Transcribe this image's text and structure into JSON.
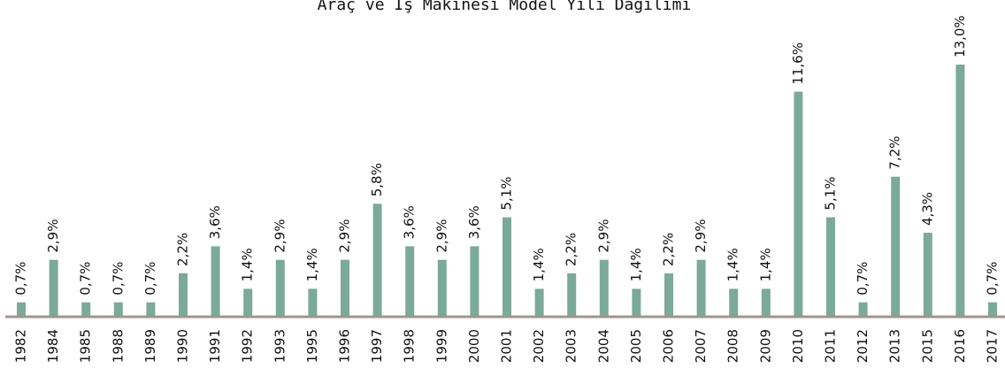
{
  "chart_data": {
    "type": "bar",
    "title": "Araç ve İş Makinesi Model Yılı Dağılımı",
    "categories": [
      "1982",
      "1984",
      "1985",
      "1988",
      "1989",
      "1990",
      "1991",
      "1992",
      "1993",
      "1995",
      "1996",
      "1997",
      "1998",
      "1999",
      "2000",
      "2001",
      "2002",
      "2003",
      "2004",
      "2005",
      "2006",
      "2007",
      "2008",
      "2009",
      "2010",
      "2011",
      "2012",
      "2013",
      "2015",
      "2016",
      "2017"
    ],
    "values": [
      0.7,
      2.9,
      0.7,
      0.7,
      0.7,
      2.2,
      3.6,
      1.4,
      2.9,
      1.4,
      2.9,
      5.8,
      3.6,
      2.9,
      3.6,
      5.1,
      1.4,
      2.2,
      2.9,
      1.4,
      2.2,
      2.9,
      1.4,
      1.4,
      11.6,
      5.1,
      0.7,
      7.2,
      4.3,
      13.0,
      0.7
    ],
    "value_labels": [
      "0,7%",
      "2,9%",
      "0,7%",
      "0,7%",
      "0,7%",
      "2,2%",
      "3,6%",
      "1,4%",
      "2,9%",
      "1,4%",
      "2,9%",
      "5,8%",
      "3,6%",
      "2,9%",
      "3,6%",
      "5,1%",
      "1,4%",
      "2,2%",
      "2,9%",
      "1,4%",
      "2,2%",
      "2,9%",
      "1,4%",
      "1,4%",
      "11,6%",
      "5,1%",
      "0,7%",
      "7,2%",
      "4,3%",
      "13,0%",
      "0,7%"
    ],
    "color": "#7ba99a"
  }
}
